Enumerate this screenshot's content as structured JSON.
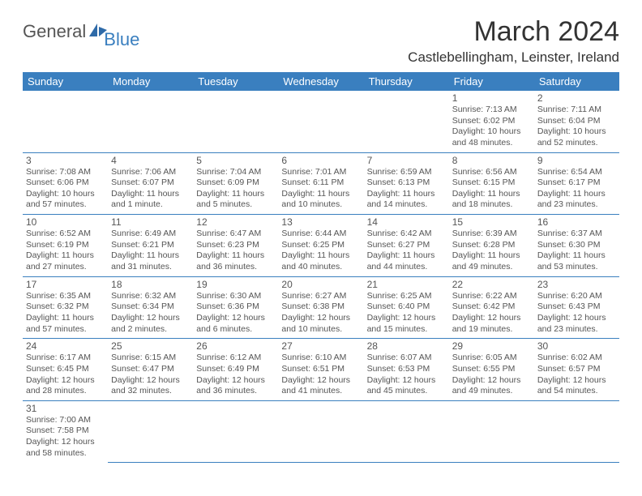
{
  "logo": {
    "part1": "General",
    "part2": "Blue"
  },
  "title": "March 2024",
  "location": "Castlebellingham, Leinster, Ireland",
  "colors": {
    "header_bg": "#3a7fbf",
    "header_text": "#ffffff",
    "row_border": "#3a7fbf",
    "body_text": "#555555",
    "logo_gray": "#555555",
    "logo_blue": "#3a7fbf",
    "page_bg": "#ffffff"
  },
  "daysOfWeek": [
    "Sunday",
    "Monday",
    "Tuesday",
    "Wednesday",
    "Thursday",
    "Friday",
    "Saturday"
  ],
  "weeks": [
    [
      null,
      null,
      null,
      null,
      null,
      {
        "n": "1",
        "sr": "Sunrise: 7:13 AM",
        "ss": "Sunset: 6:02 PM",
        "d1": "Daylight: 10 hours",
        "d2": "and 48 minutes."
      },
      {
        "n": "2",
        "sr": "Sunrise: 7:11 AM",
        "ss": "Sunset: 6:04 PM",
        "d1": "Daylight: 10 hours",
        "d2": "and 52 minutes."
      }
    ],
    [
      {
        "n": "3",
        "sr": "Sunrise: 7:08 AM",
        "ss": "Sunset: 6:06 PM",
        "d1": "Daylight: 10 hours",
        "d2": "and 57 minutes."
      },
      {
        "n": "4",
        "sr": "Sunrise: 7:06 AM",
        "ss": "Sunset: 6:07 PM",
        "d1": "Daylight: 11 hours",
        "d2": "and 1 minute."
      },
      {
        "n": "5",
        "sr": "Sunrise: 7:04 AM",
        "ss": "Sunset: 6:09 PM",
        "d1": "Daylight: 11 hours",
        "d2": "and 5 minutes."
      },
      {
        "n": "6",
        "sr": "Sunrise: 7:01 AM",
        "ss": "Sunset: 6:11 PM",
        "d1": "Daylight: 11 hours",
        "d2": "and 10 minutes."
      },
      {
        "n": "7",
        "sr": "Sunrise: 6:59 AM",
        "ss": "Sunset: 6:13 PM",
        "d1": "Daylight: 11 hours",
        "d2": "and 14 minutes."
      },
      {
        "n": "8",
        "sr": "Sunrise: 6:56 AM",
        "ss": "Sunset: 6:15 PM",
        "d1": "Daylight: 11 hours",
        "d2": "and 18 minutes."
      },
      {
        "n": "9",
        "sr": "Sunrise: 6:54 AM",
        "ss": "Sunset: 6:17 PM",
        "d1": "Daylight: 11 hours",
        "d2": "and 23 minutes."
      }
    ],
    [
      {
        "n": "10",
        "sr": "Sunrise: 6:52 AM",
        "ss": "Sunset: 6:19 PM",
        "d1": "Daylight: 11 hours",
        "d2": "and 27 minutes."
      },
      {
        "n": "11",
        "sr": "Sunrise: 6:49 AM",
        "ss": "Sunset: 6:21 PM",
        "d1": "Daylight: 11 hours",
        "d2": "and 31 minutes."
      },
      {
        "n": "12",
        "sr": "Sunrise: 6:47 AM",
        "ss": "Sunset: 6:23 PM",
        "d1": "Daylight: 11 hours",
        "d2": "and 36 minutes."
      },
      {
        "n": "13",
        "sr": "Sunrise: 6:44 AM",
        "ss": "Sunset: 6:25 PM",
        "d1": "Daylight: 11 hours",
        "d2": "and 40 minutes."
      },
      {
        "n": "14",
        "sr": "Sunrise: 6:42 AM",
        "ss": "Sunset: 6:27 PM",
        "d1": "Daylight: 11 hours",
        "d2": "and 44 minutes."
      },
      {
        "n": "15",
        "sr": "Sunrise: 6:39 AM",
        "ss": "Sunset: 6:28 PM",
        "d1": "Daylight: 11 hours",
        "d2": "and 49 minutes."
      },
      {
        "n": "16",
        "sr": "Sunrise: 6:37 AM",
        "ss": "Sunset: 6:30 PM",
        "d1": "Daylight: 11 hours",
        "d2": "and 53 minutes."
      }
    ],
    [
      {
        "n": "17",
        "sr": "Sunrise: 6:35 AM",
        "ss": "Sunset: 6:32 PM",
        "d1": "Daylight: 11 hours",
        "d2": "and 57 minutes."
      },
      {
        "n": "18",
        "sr": "Sunrise: 6:32 AM",
        "ss": "Sunset: 6:34 PM",
        "d1": "Daylight: 12 hours",
        "d2": "and 2 minutes."
      },
      {
        "n": "19",
        "sr": "Sunrise: 6:30 AM",
        "ss": "Sunset: 6:36 PM",
        "d1": "Daylight: 12 hours",
        "d2": "and 6 minutes."
      },
      {
        "n": "20",
        "sr": "Sunrise: 6:27 AM",
        "ss": "Sunset: 6:38 PM",
        "d1": "Daylight: 12 hours",
        "d2": "and 10 minutes."
      },
      {
        "n": "21",
        "sr": "Sunrise: 6:25 AM",
        "ss": "Sunset: 6:40 PM",
        "d1": "Daylight: 12 hours",
        "d2": "and 15 minutes."
      },
      {
        "n": "22",
        "sr": "Sunrise: 6:22 AM",
        "ss": "Sunset: 6:42 PM",
        "d1": "Daylight: 12 hours",
        "d2": "and 19 minutes."
      },
      {
        "n": "23",
        "sr": "Sunrise: 6:20 AM",
        "ss": "Sunset: 6:43 PM",
        "d1": "Daylight: 12 hours",
        "d2": "and 23 minutes."
      }
    ],
    [
      {
        "n": "24",
        "sr": "Sunrise: 6:17 AM",
        "ss": "Sunset: 6:45 PM",
        "d1": "Daylight: 12 hours",
        "d2": "and 28 minutes."
      },
      {
        "n": "25",
        "sr": "Sunrise: 6:15 AM",
        "ss": "Sunset: 6:47 PM",
        "d1": "Daylight: 12 hours",
        "d2": "and 32 minutes."
      },
      {
        "n": "26",
        "sr": "Sunrise: 6:12 AM",
        "ss": "Sunset: 6:49 PM",
        "d1": "Daylight: 12 hours",
        "d2": "and 36 minutes."
      },
      {
        "n": "27",
        "sr": "Sunrise: 6:10 AM",
        "ss": "Sunset: 6:51 PM",
        "d1": "Daylight: 12 hours",
        "d2": "and 41 minutes."
      },
      {
        "n": "28",
        "sr": "Sunrise: 6:07 AM",
        "ss": "Sunset: 6:53 PM",
        "d1": "Daylight: 12 hours",
        "d2": "and 45 minutes."
      },
      {
        "n": "29",
        "sr": "Sunrise: 6:05 AM",
        "ss": "Sunset: 6:55 PM",
        "d1": "Daylight: 12 hours",
        "d2": "and 49 minutes."
      },
      {
        "n": "30",
        "sr": "Sunrise: 6:02 AM",
        "ss": "Sunset: 6:57 PM",
        "d1": "Daylight: 12 hours",
        "d2": "and 54 minutes."
      }
    ],
    [
      {
        "n": "31",
        "sr": "Sunrise: 7:00 AM",
        "ss": "Sunset: 7:58 PM",
        "d1": "Daylight: 12 hours",
        "d2": "and 58 minutes."
      },
      null,
      null,
      null,
      null,
      null,
      null
    ]
  ]
}
